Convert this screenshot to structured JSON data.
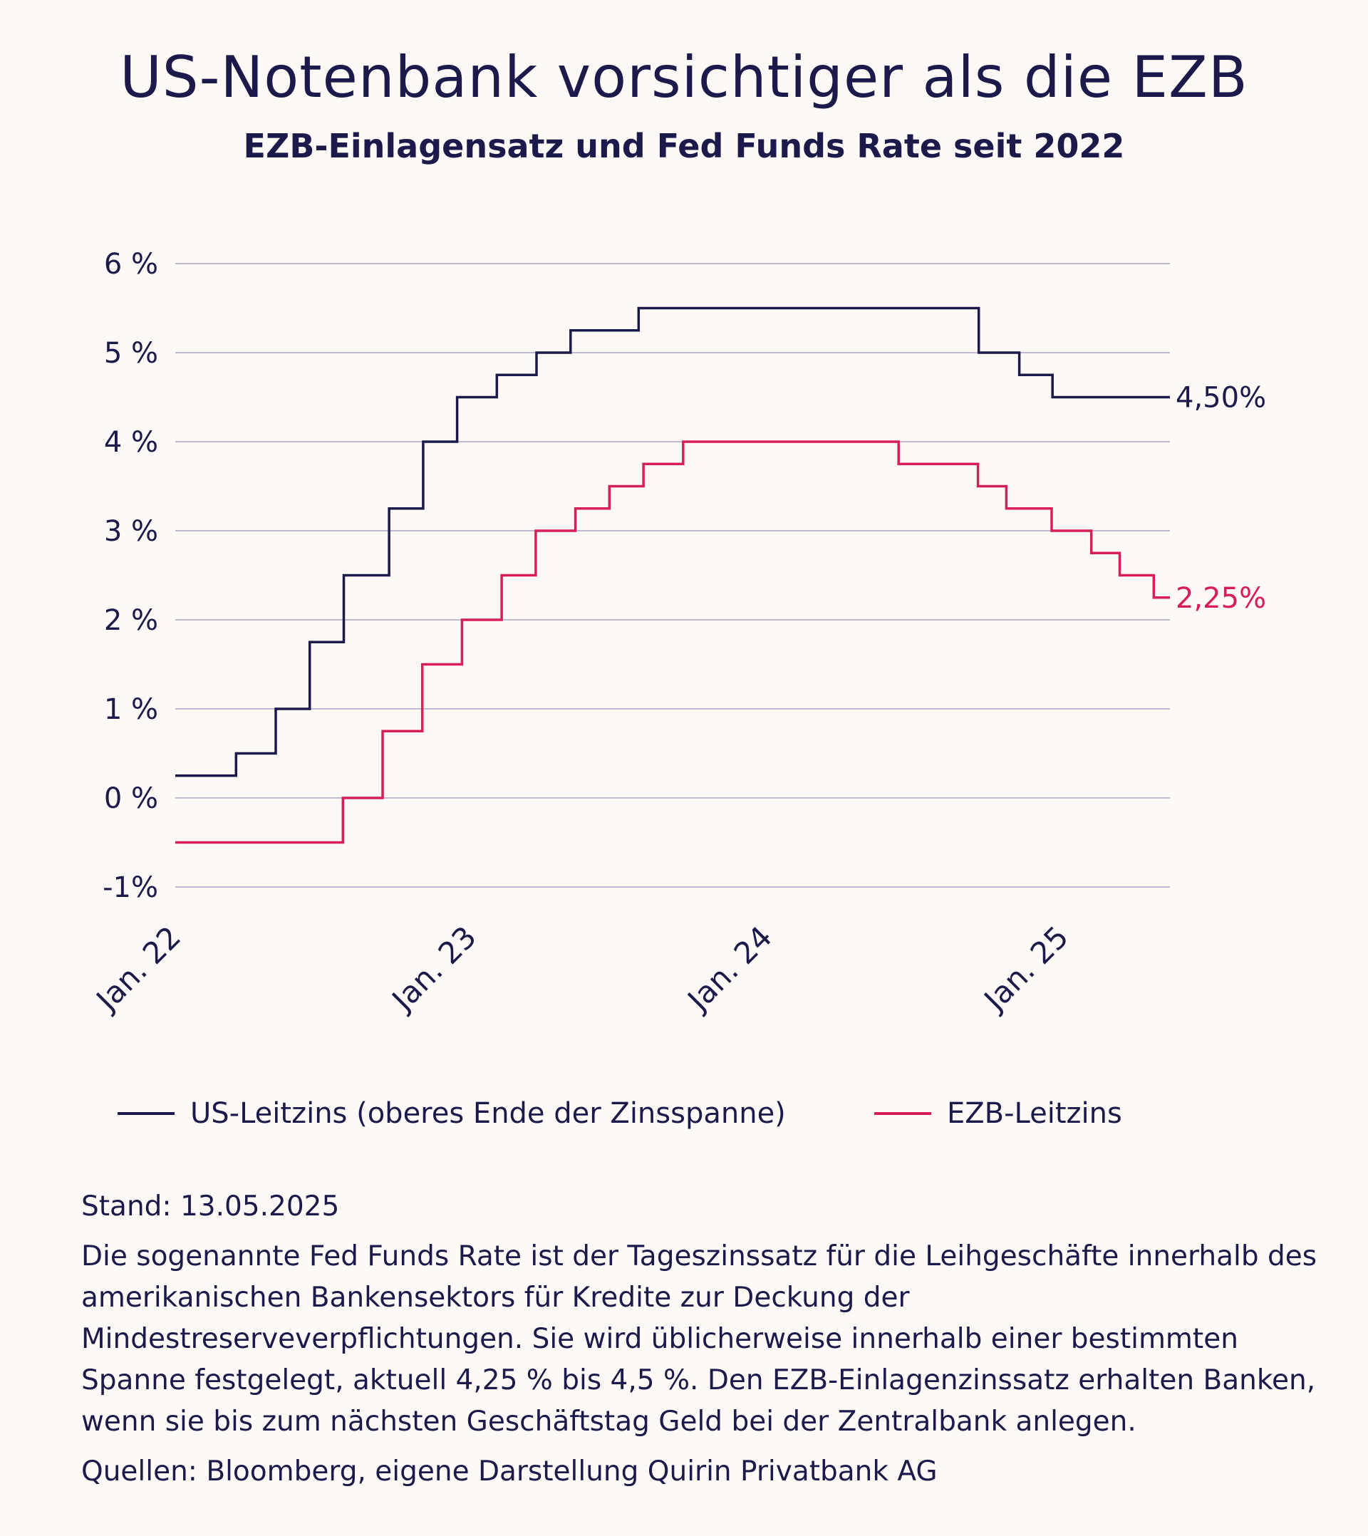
{
  "header": {
    "title": "US-Notenbank vorsichtiger als die EZB",
    "subtitle": "EZB-Einlagensatz und Fed Funds Rate seit 2022"
  },
  "legend": {
    "items": [
      {
        "label": "US-Leitzins (oberes Ende der Zinsspanne)",
        "color": "#1c1a4a"
      },
      {
        "label": "EZB-Leitzins",
        "color": "#d81e57"
      }
    ]
  },
  "footer": {
    "stand": "Stand: 13.05.2025",
    "description": "Die sogenannte Fed Funds Rate ist der Tageszinssatz für die Leihgeschäfte innerhalb des amerikanischen Bankensektors für Kredite zur Deckung der Mindestreserveverpflichtungen. Sie wird üblicherweise innerhalb einer bestimmten Spanne festgelegt, aktuell 4,25 % bis 4,5 %. Den EZB-Einlagenzinssatz erhalten Banken, wenn sie bis zum nächsten Geschäftstag Geld bei der Zentralbank anlegen.",
    "source": "Quellen: Bloomberg, eigene Darstellung Quirin Privatbank AG"
  },
  "chart_data": {
    "type": "line",
    "step": true,
    "title": "US-Notenbank vorsichtiger als die EZB",
    "subtitle": "EZB-Einlagensatz und Fed Funds Rate seit 2022",
    "xlabel": "",
    "ylabel": "",
    "ylim": [
      -1,
      6
    ],
    "xlim": [
      "2022-01-01",
      "2025-05-13"
    ],
    "yticks": [
      6,
      5,
      4,
      3,
      2,
      1,
      0,
      -1
    ],
    "ytick_labels": [
      "6 %",
      "5 %",
      "4 %",
      "3 %",
      "2 %",
      "1 %",
      "0 %",
      "-1%"
    ],
    "xticks": [
      "2022-01-01",
      "2023-01-01",
      "2024-01-01",
      "2025-01-01"
    ],
    "xtick_labels": [
      "Jan. 22",
      "Jan. 23",
      "Jan. 24",
      "Jan. 25"
    ],
    "grid": true,
    "legend_position": "bottom",
    "series": [
      {
        "name": "US-Leitzins (oberes Ende der Zinsspanne)",
        "color": "#1c1a4a",
        "end_label": "4,50%",
        "points": [
          [
            "2022-01-01",
            0.25
          ],
          [
            "2022-03-17",
            0.5
          ],
          [
            "2022-05-05",
            1.0
          ],
          [
            "2022-06-16",
            1.75
          ],
          [
            "2022-07-28",
            2.5
          ],
          [
            "2022-09-22",
            3.25
          ],
          [
            "2022-11-03",
            4.0
          ],
          [
            "2022-12-15",
            4.5
          ],
          [
            "2023-02-02",
            4.75
          ],
          [
            "2023-03-23",
            5.0
          ],
          [
            "2023-05-04",
            5.25
          ],
          [
            "2023-07-27",
            5.5
          ],
          [
            "2024-09-19",
            5.0
          ],
          [
            "2024-11-08",
            4.75
          ],
          [
            "2024-12-19",
            4.5
          ],
          [
            "2025-05-13",
            4.5
          ]
        ]
      },
      {
        "name": "EZB-Leitzins",
        "color": "#d81e57",
        "end_label": "2,25%",
        "points": [
          [
            "2022-01-01",
            -0.5
          ],
          [
            "2022-07-27",
            0.0
          ],
          [
            "2022-09-14",
            0.75
          ],
          [
            "2022-11-02",
            1.5
          ],
          [
            "2022-12-21",
            2.0
          ],
          [
            "2023-02-08",
            2.5
          ],
          [
            "2023-03-22",
            3.0
          ],
          [
            "2023-05-10",
            3.25
          ],
          [
            "2023-06-21",
            3.5
          ],
          [
            "2023-08-02",
            3.75
          ],
          [
            "2023-09-20",
            4.0
          ],
          [
            "2024-06-12",
            3.75
          ],
          [
            "2024-09-18",
            3.5
          ],
          [
            "2024-10-23",
            3.25
          ],
          [
            "2024-12-18",
            3.0
          ],
          [
            "2025-02-05",
            2.75
          ],
          [
            "2025-03-12",
            2.5
          ],
          [
            "2025-04-23",
            2.25
          ],
          [
            "2025-05-13",
            2.25
          ]
        ]
      }
    ]
  }
}
